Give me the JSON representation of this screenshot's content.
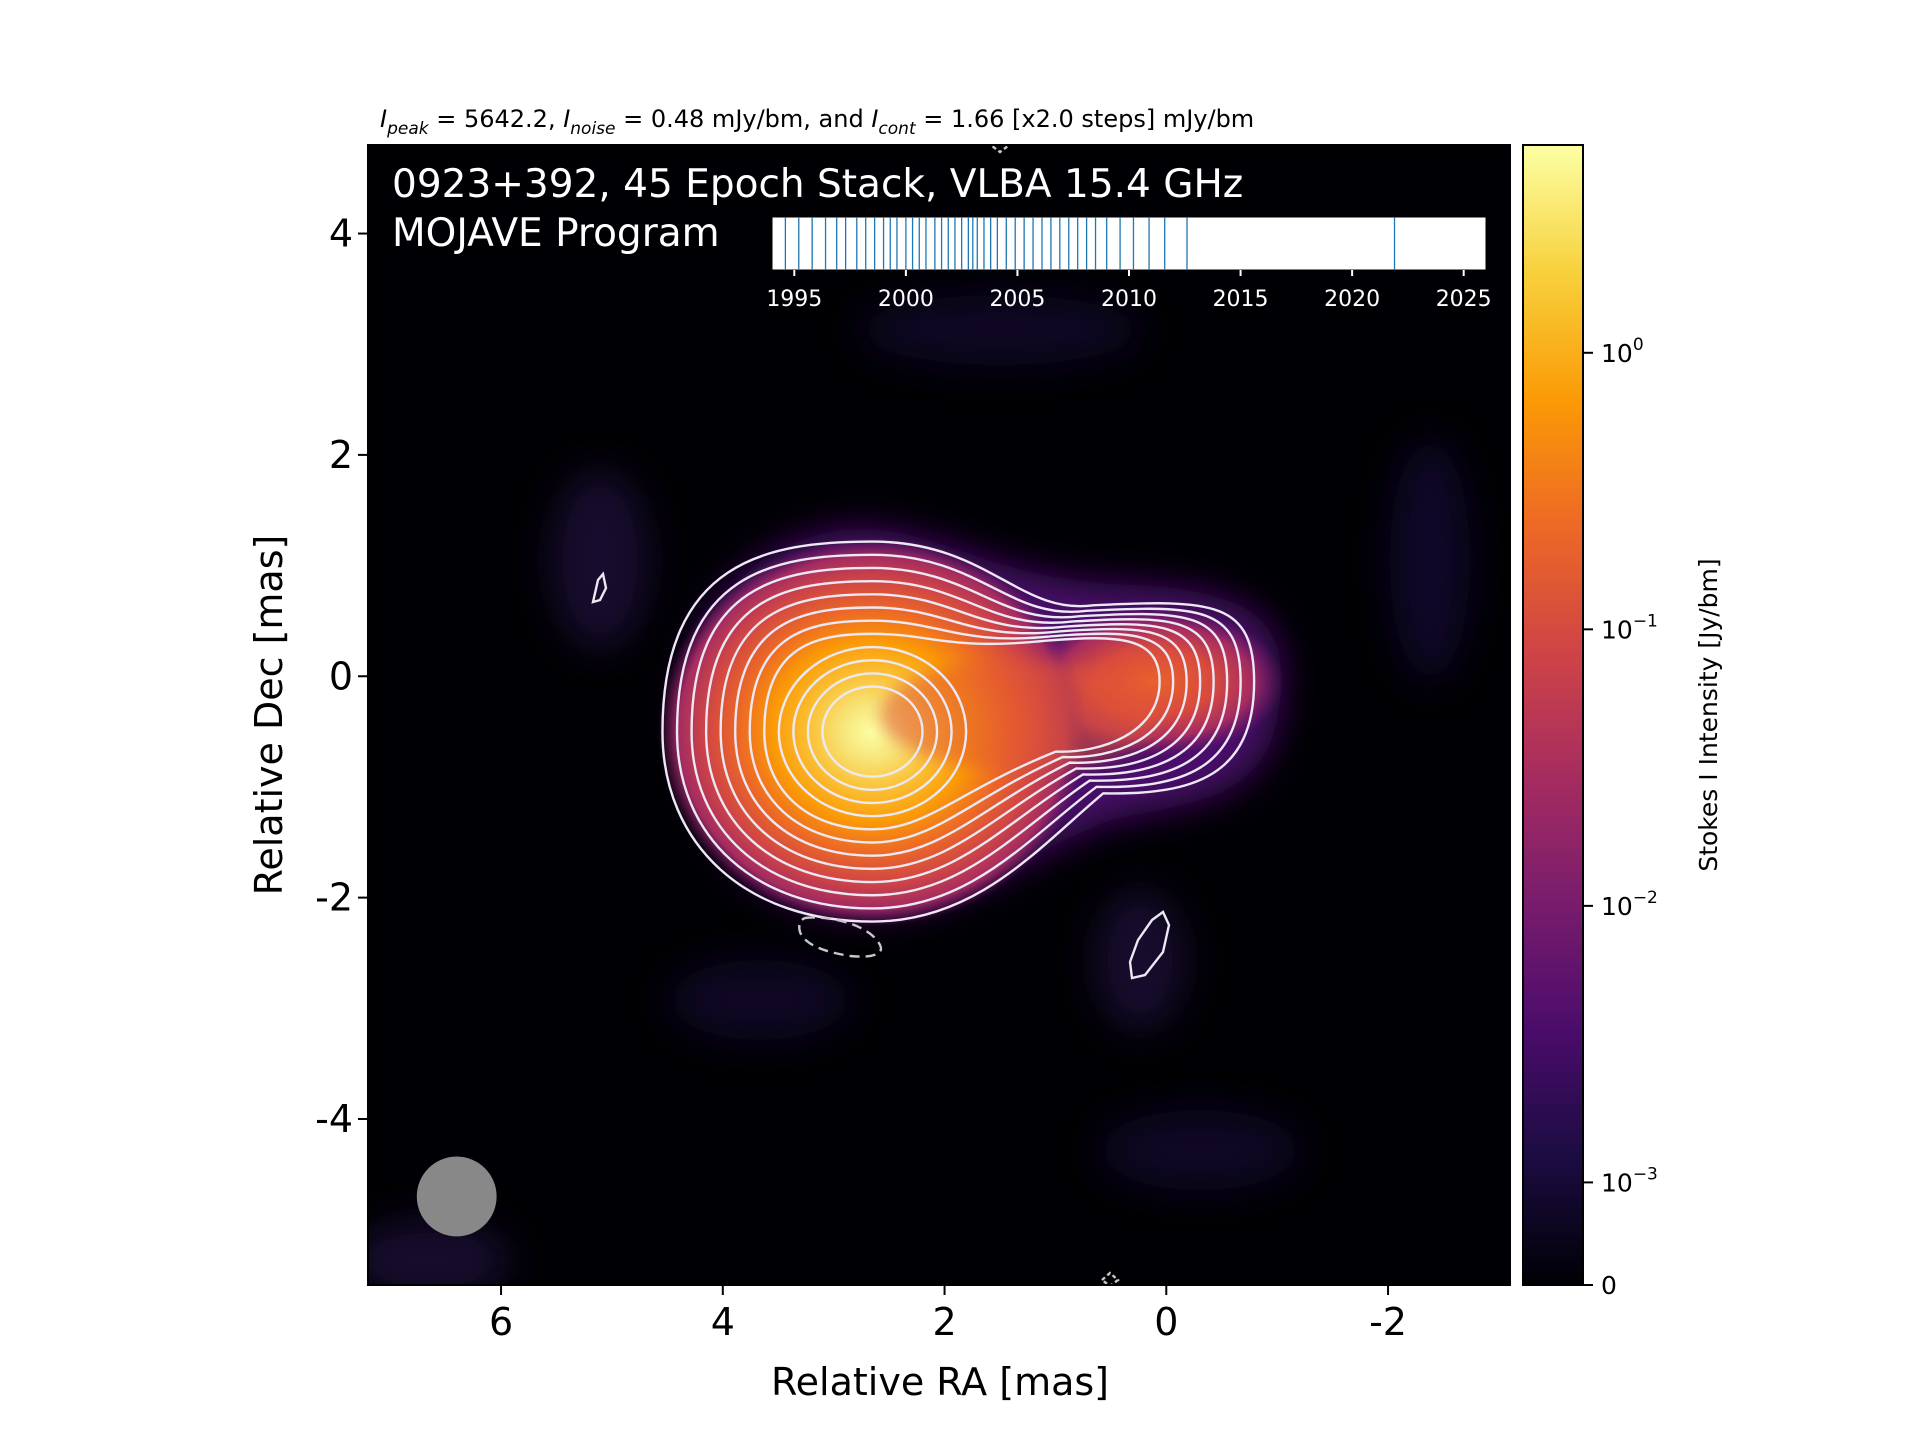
{
  "header": {
    "peak_sym": "I",
    "peak_sub": "peak",
    "peak_val": " = 5642.2, ",
    "noise_sym": "I",
    "noise_sub": "noise",
    "noise_val": " = 0.48 mJy/bm, and ",
    "cont_sym": "I",
    "cont_sub": "cont",
    "cont_val": " = 1.66 [x2.0 steps] mJy/bm"
  },
  "overlay": {
    "line1": "0923+392, 45 Epoch Stack, VLBA 15.4 GHz",
    "line2": "MOJAVE Program"
  },
  "colors": {
    "cmap": [
      "#000004",
      "#1b0c41",
      "#4a0c6b",
      "#781c6d",
      "#a52c60",
      "#cf4446",
      "#ed6925",
      "#fb9b06",
      "#f7d13d",
      "#fcffa4"
    ],
    "contour": "#ece8f4",
    "negative_contour": "#c8c8c8",
    "epoch_line": "#1f77b4",
    "beam": "#888888"
  },
  "chart_data": {
    "type": "heatmap",
    "title": "",
    "xlabel": "Relative RA [mas]",
    "ylabel": "Relative Dec [mas]",
    "xlim": [
      7.2,
      -3.1
    ],
    "ylim": [
      -5.5,
      4.8
    ],
    "xticks": [
      6,
      4,
      2,
      0,
      -2
    ],
    "xtick_labels": [
      "6",
      "4",
      "2",
      "0",
      "-2"
    ],
    "yticks": [
      4,
      2,
      0,
      -2,
      -4
    ],
    "ytick_labels": [
      "4",
      "2",
      "0",
      "-2",
      "-4"
    ],
    "core": {
      "ra": 2.65,
      "dec": -0.5,
      "peak_jy": 5.6422
    },
    "jet_component": {
      "ra": 0.2,
      "dec": -0.05,
      "flux_jy": 0.12
    },
    "beam": {
      "ra": 6.4,
      "dec": -4.7,
      "diameter_mas": 0.72
    },
    "colorbar": {
      "label": "Stokes I Intensity [Jy/bm]",
      "scale": "symlog",
      "range_jy": [
        0,
        5.6422
      ],
      "ticks": [
        {
          "value": 1,
          "base": "10",
          "exp": "0"
        },
        {
          "value": 0.1,
          "base": "10",
          "exp": "−1"
        },
        {
          "value": 0.01,
          "base": "10",
          "exp": "−2"
        },
        {
          "value": 0.001,
          "base": "10",
          "exp": "−3"
        },
        {
          "value": 0,
          "base": "0",
          "exp": ""
        }
      ]
    },
    "contour_levels": {
      "base_mjy": 1.66,
      "step_factor": 2.0,
      "count": 12
    },
    "epochs": {
      "xlim": [
        1994.0,
        2026.0
      ],
      "ticks": [
        1995,
        2000,
        2005,
        2010,
        2015,
        2020,
        2025
      ],
      "tick_labels": [
        "1995",
        "2000",
        "2005",
        "2010",
        "2015",
        "2020",
        "2025"
      ],
      "count": 45,
      "dates": [
        1994.6,
        1995.2,
        1995.8,
        1996.4,
        1996.9,
        1997.3,
        1997.8,
        1998.2,
        1998.6,
        1999.0,
        1999.3,
        1999.6,
        2000.0,
        2000.3,
        2000.6,
        2000.9,
        2001.3,
        2001.6,
        2001.9,
        2002.2,
        2002.5,
        2002.8,
        2003.0,
        2003.2,
        2003.5,
        2003.8,
        2004.1,
        2004.5,
        2004.9,
        2005.3,
        2005.7,
        2006.1,
        2006.5,
        2006.9,
        2007.3,
        2007.7,
        2008.1,
        2008.5,
        2009.0,
        2009.6,
        2010.2,
        2010.9,
        2011.6,
        2012.6,
        2021.9
      ]
    }
  }
}
